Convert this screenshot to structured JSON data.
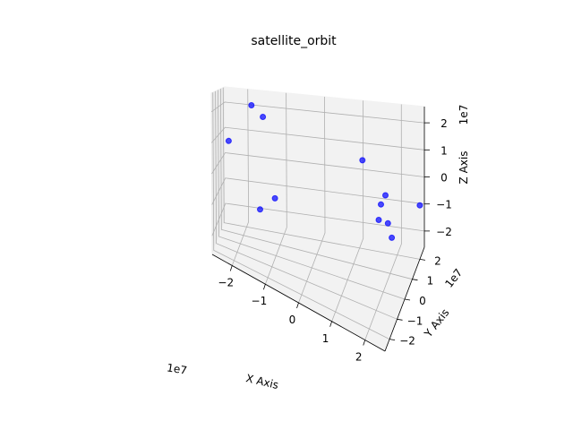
{
  "chart_data": {
    "type": "scatter",
    "title": "satellite_orbit",
    "xlabel": "X Axis",
    "ylabel": "Y Axis",
    "zlabel": "Z Axis",
    "projection": "3d",
    "grid": true,
    "xlim": [
      -26000000.0,
      26000000.0
    ],
    "ylim": [
      -26000000.0,
      26000000.0
    ],
    "zlim": [
      -26000000.0,
      26000000.0
    ],
    "x_ticks": [
      "−2",
      "−1",
      "0",
      "1",
      "2"
    ],
    "y_ticks": [
      "−2",
      "−1",
      "0",
      "1",
      "2"
    ],
    "z_ticks": [
      "−2",
      "−1",
      "0",
      "1",
      "2"
    ],
    "x_offset_text": "1e7",
    "y_offset_text": "1e7",
    "z_offset_text": "1e7",
    "color": "#0000ff",
    "series": [
      {
        "x": [
          -19000000.0,
          -16000000.0,
          -25000000.0,
          10000000.0,
          16000000.0,
          15000000.0,
          17000000.0,
          25000000.0,
          -13000000.0,
          -10000000.0,
          20000000.0,
          25000000.0
        ],
        "y": [
          25000000.0,
          25000000.0,
          25000000.0,
          25000000.0,
          25000000.0,
          24000000.0,
          23000000.0,
          25000000.0,
          -13000000.0,
          -2000000.0,
          -6000000.0,
          -12000000.0
        ],
        "z": [
          20000000.0,
          16000000.0,
          5000000.0,
          4000000.0,
          -8000000.0,
          -11000000.0,
          -17000000.0,
          -10000000.0,
          -7000000.0,
          -5000000.0,
          3000000.0,
          3000000.0
        ]
      }
    ]
  }
}
